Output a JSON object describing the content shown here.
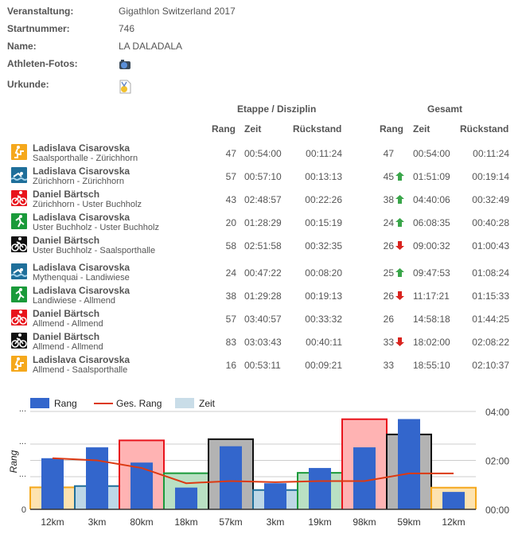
{
  "info": [
    {
      "label": "Veranstaltung:",
      "value": "Gigathlon Switzerland 2017"
    },
    {
      "label": "Startnummer:",
      "value": "746"
    },
    {
      "label": "Name:",
      "value": "LA DALADALA"
    },
    {
      "label": "Athleten-Fotos:",
      "icon": "camera-icon"
    },
    {
      "label": "Urkunde:",
      "icon": "certificate-icon"
    }
  ],
  "headers": {
    "stage": "Etappe / Disziplin",
    "total": "Gesamt",
    "rang": "Rang",
    "zeit": "Zeit",
    "rueckstand": "Rückstand"
  },
  "colors": {
    "stairs": "#f5a81c",
    "swim": "#1f6f9a",
    "bike": "#e8141c",
    "run": "#1a9a3a",
    "mtb": "#111111",
    "up": "#3aa64a",
    "down": "#d9231e"
  },
  "rows": [
    {
      "disc": "stairs",
      "athlete": "Ladislava Cisarovska",
      "route": "Saalsporthalle - Zürichhorn",
      "rang": "47",
      "zeit": "00:54:00",
      "rueck": "00:11:24",
      "g_rang": "47",
      "trend": "",
      "g_zeit": "00:54:00",
      "g_rueck": "00:11:24"
    },
    {
      "disc": "swim",
      "athlete": "Ladislava Cisarovska",
      "route": "Zürichhorn - Zürichhorn",
      "rang": "57",
      "zeit": "00:57:10",
      "rueck": "00:13:13",
      "g_rang": "45",
      "trend": "up",
      "g_zeit": "01:51:09",
      "g_rueck": "00:19:14"
    },
    {
      "disc": "bike",
      "athlete": "Daniel Bärtsch",
      "route": "Zürichhorn - Uster Buchholz",
      "rang": "43",
      "zeit": "02:48:57",
      "rueck": "00:22:26",
      "g_rang": "38",
      "trend": "up",
      "g_zeit": "04:40:06",
      "g_rueck": "00:32:49"
    },
    {
      "disc": "run",
      "athlete": "Ladislava Cisarovska",
      "route": "Uster Buchholz - Uster Buchholz",
      "rang": "20",
      "zeit": "01:28:29",
      "rueck": "00:15:19",
      "g_rang": "24",
      "trend": "up",
      "g_zeit": "06:08:35",
      "g_rueck": "00:40:28"
    },
    {
      "disc": "mtb",
      "athlete": "Daniel Bärtsch",
      "route": "Uster Buchholz - Saalsporthalle",
      "rang": "58",
      "zeit": "02:51:58",
      "rueck": "00:32:35",
      "g_rang": "26",
      "trend": "down",
      "g_zeit": "09:00:32",
      "g_rueck": "01:00:43"
    },
    {
      "disc": "swim",
      "athlete": "Ladislava Cisarovska",
      "route": "Mythenquai - Landiwiese",
      "rang": "24",
      "zeit": "00:47:22",
      "rueck": "00:08:20",
      "g_rang": "25",
      "trend": "up",
      "g_zeit": "09:47:53",
      "g_rueck": "01:08:24"
    },
    {
      "disc": "run",
      "athlete": "Ladislava Cisarovska",
      "route": "Landiwiese - Allmend",
      "rang": "38",
      "zeit": "01:29:28",
      "rueck": "00:19:13",
      "g_rang": "26",
      "trend": "down",
      "g_zeit": "11:17:21",
      "g_rueck": "01:15:33"
    },
    {
      "disc": "bike",
      "athlete": "Daniel Bärtsch",
      "route": "Allmend - Allmend",
      "rang": "57",
      "zeit": "03:40:57",
      "rueck": "00:33:32",
      "g_rang": "26",
      "trend": "",
      "g_zeit": "14:58:18",
      "g_rueck": "01:44:25"
    },
    {
      "disc": "mtb",
      "athlete": "Daniel Bärtsch",
      "route": "Allmend - Allmend",
      "rang": "83",
      "zeit": "03:03:43",
      "rueck": "00:40:11",
      "g_rang": "33",
      "trend": "down",
      "g_zeit": "18:02:00",
      "g_rueck": "02:08:22"
    },
    {
      "disc": "stairs",
      "athlete": "Ladislava Cisarovska",
      "route": "Allmend - Saalsporthalle",
      "rang": "16",
      "zeit": "00:53:11",
      "rueck": "00:09:21",
      "g_rang": "33",
      "trend": "",
      "g_zeit": "18:55:10",
      "g_rueck": "02:10:37"
    }
  ],
  "chart_data": {
    "type": "bar",
    "categories": [
      "12km",
      "3km",
      "80km",
      "18km",
      "57km",
      "3km",
      "19km",
      "98km",
      "59km",
      "12km"
    ],
    "disciplines": [
      "stairs",
      "swim",
      "bike",
      "run",
      "mtb",
      "swim",
      "run",
      "bike",
      "mtb",
      "stairs"
    ],
    "series": [
      {
        "name": "Rang",
        "type": "bar",
        "axis": "left",
        "values": [
          47,
          57,
          43,
          20,
          58,
          24,
          38,
          57,
          83,
          16
        ]
      },
      {
        "name": "Ges. Rang",
        "type": "line",
        "axis": "left",
        "values": [
          47,
          45,
          38,
          24,
          26,
          25,
          26,
          26,
          33,
          33
        ]
      },
      {
        "name": "Zeit",
        "type": "bar",
        "axis": "right",
        "unit": "hours",
        "values": [
          0.9,
          0.953,
          2.816,
          1.475,
          2.866,
          0.789,
          1.491,
          3.683,
          3.062,
          0.886
        ]
      }
    ],
    "ylabel": "Rang",
    "ylim": [
      0,
      90
    ],
    "y_ticks": [
      "0",
      "...",
      "...",
      "..."
    ],
    "y2lim": [
      0,
      4
    ],
    "y2_ticks": [
      "00:00",
      "02:00",
      "04:00"
    ],
    "legend": "top-left",
    "legend_colors": {
      "Rang": "#3366cc",
      "Ges. Rang": "#dc3912",
      "Zeit": "#c9dde8"
    }
  }
}
